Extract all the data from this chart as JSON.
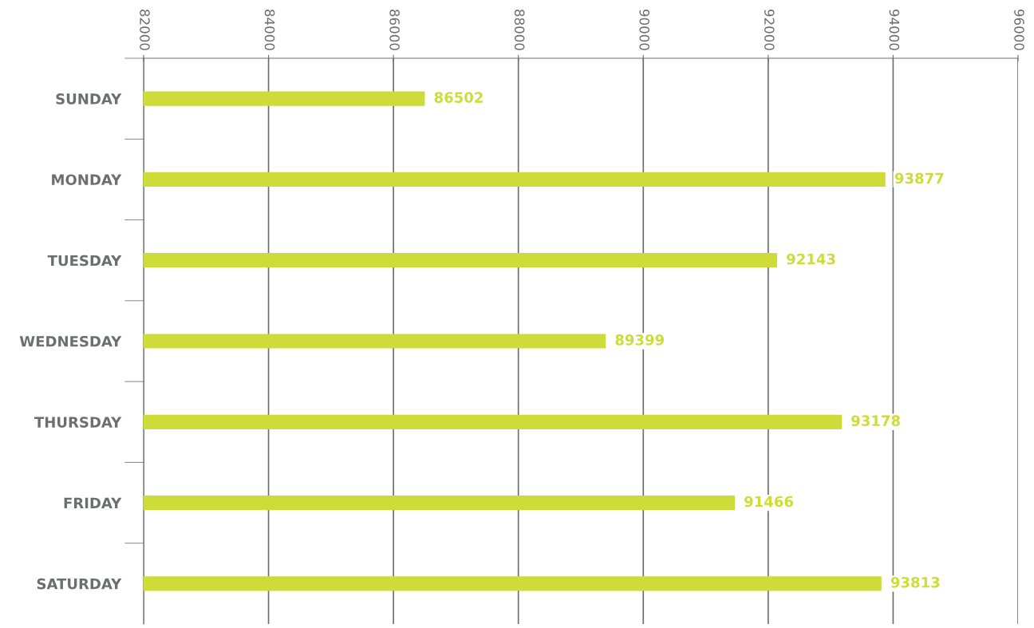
{
  "chart_data": {
    "type": "bar",
    "orientation": "horizontal",
    "categories": [
      "SUNDAY",
      "MONDAY",
      "TUESDAY",
      "WEDNESDAY",
      "THURSDAY",
      "FRIDAY",
      "SATURDAY"
    ],
    "values": [
      86502,
      93877,
      92143,
      89399,
      93178,
      91466,
      93813
    ],
    "color": "#cddc39",
    "xlim": [
      82000,
      96000
    ],
    "xticks": [
      82000,
      84000,
      86000,
      88000,
      90000,
      92000,
      94000,
      96000
    ],
    "grid": "x",
    "data_labels": true
  }
}
